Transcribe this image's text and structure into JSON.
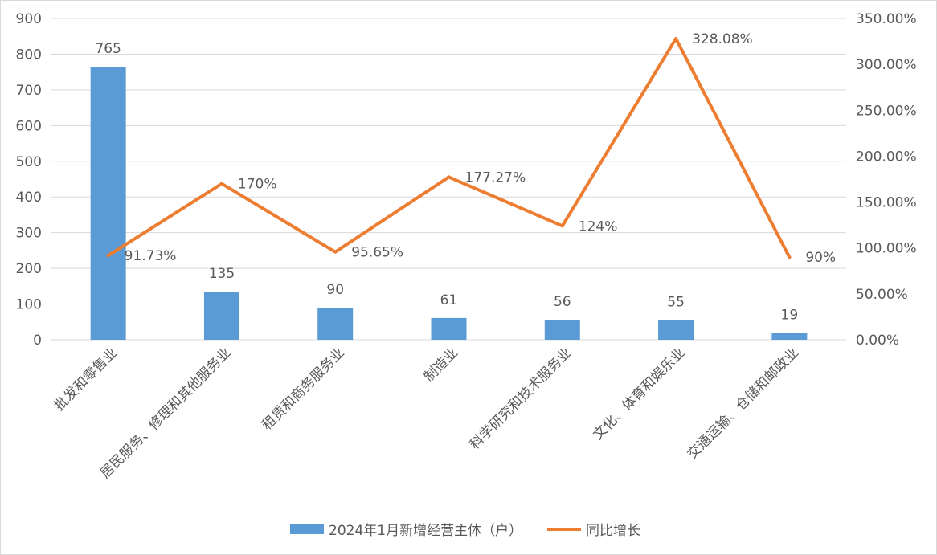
{
  "chart_data": {
    "type": "bar+line",
    "categories": [
      "批发和零售业",
      "居民服务、修理和其他服务业",
      "租赁和商务服务业",
      "制造业",
      "科学研究和技术服务业",
      "文化、体育和娱乐业",
      "交通运输、仓储和邮政业"
    ],
    "series": [
      {
        "name": "2024年1月新增经营主体（户）",
        "type": "bar",
        "axis": "left",
        "color": "#5b9bd5",
        "values": [
          765,
          135,
          90,
          61,
          56,
          55,
          19
        ],
        "labels": [
          "765",
          "135",
          "90",
          "61",
          "56",
          "55",
          "19"
        ]
      },
      {
        "name": "同比增长",
        "type": "line",
        "axis": "right",
        "color": "#ed7d31",
        "values": [
          91.73,
          170,
          95.65,
          177.27,
          124,
          328.08,
          90
        ],
        "labels": [
          "91.73%",
          "170%",
          "95.65%",
          "177.27%",
          "124%",
          "328.08%",
          "90%"
        ]
      }
    ],
    "left_axis": {
      "range": [
        0,
        900
      ],
      "ticks": [
        "0",
        "100",
        "200",
        "300",
        "400",
        "500",
        "600",
        "700",
        "800",
        "900"
      ]
    },
    "right_axis": {
      "range": [
        0,
        350
      ],
      "ticks": [
        "0.00%",
        "50.00%",
        "100.00%",
        "150.00%",
        "200.00%",
        "250.00%",
        "300.00%",
        "350.00%"
      ]
    },
    "grid": true,
    "legend_position": "bottom"
  }
}
